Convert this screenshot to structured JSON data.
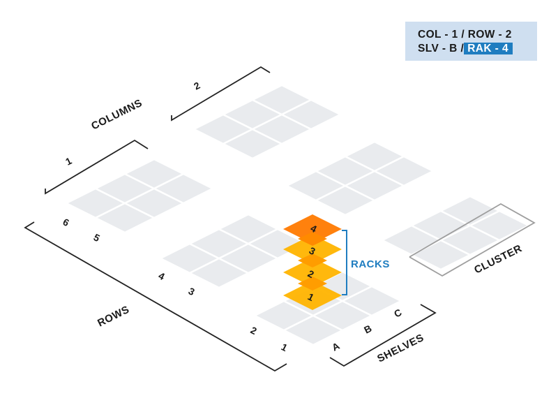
{
  "info_box": {
    "line1": "COL - 1 / ROW - 2",
    "line2_prefix": "SLV - B /",
    "line2_highlight": "RAK - 4"
  },
  "labels": {
    "columns": "COLUMNS",
    "rows": "ROWS",
    "shelves": "SHELVES",
    "racks": "RACKS",
    "cluster": "CLUSTER"
  },
  "column_numbers": [
    "1",
    "2"
  ],
  "row_numbers": [
    "1",
    "2",
    "3",
    "4",
    "5",
    "6"
  ],
  "shelf_letters": [
    "A",
    "B",
    "C"
  ],
  "rack_numbers": [
    "1",
    "2",
    "3",
    "4"
  ],
  "colors": {
    "tile": "#e9ebee",
    "tile_border": "#ffffff",
    "rack_yellow": "#ffb400",
    "rack_orange": "#ff7a00",
    "rack_overlap": "#ffa000",
    "accent_blue": "#1f7dc0",
    "info_bg": "#cfdff0",
    "bracket": "#222222",
    "cluster_outline": "#9e9e9e"
  }
}
